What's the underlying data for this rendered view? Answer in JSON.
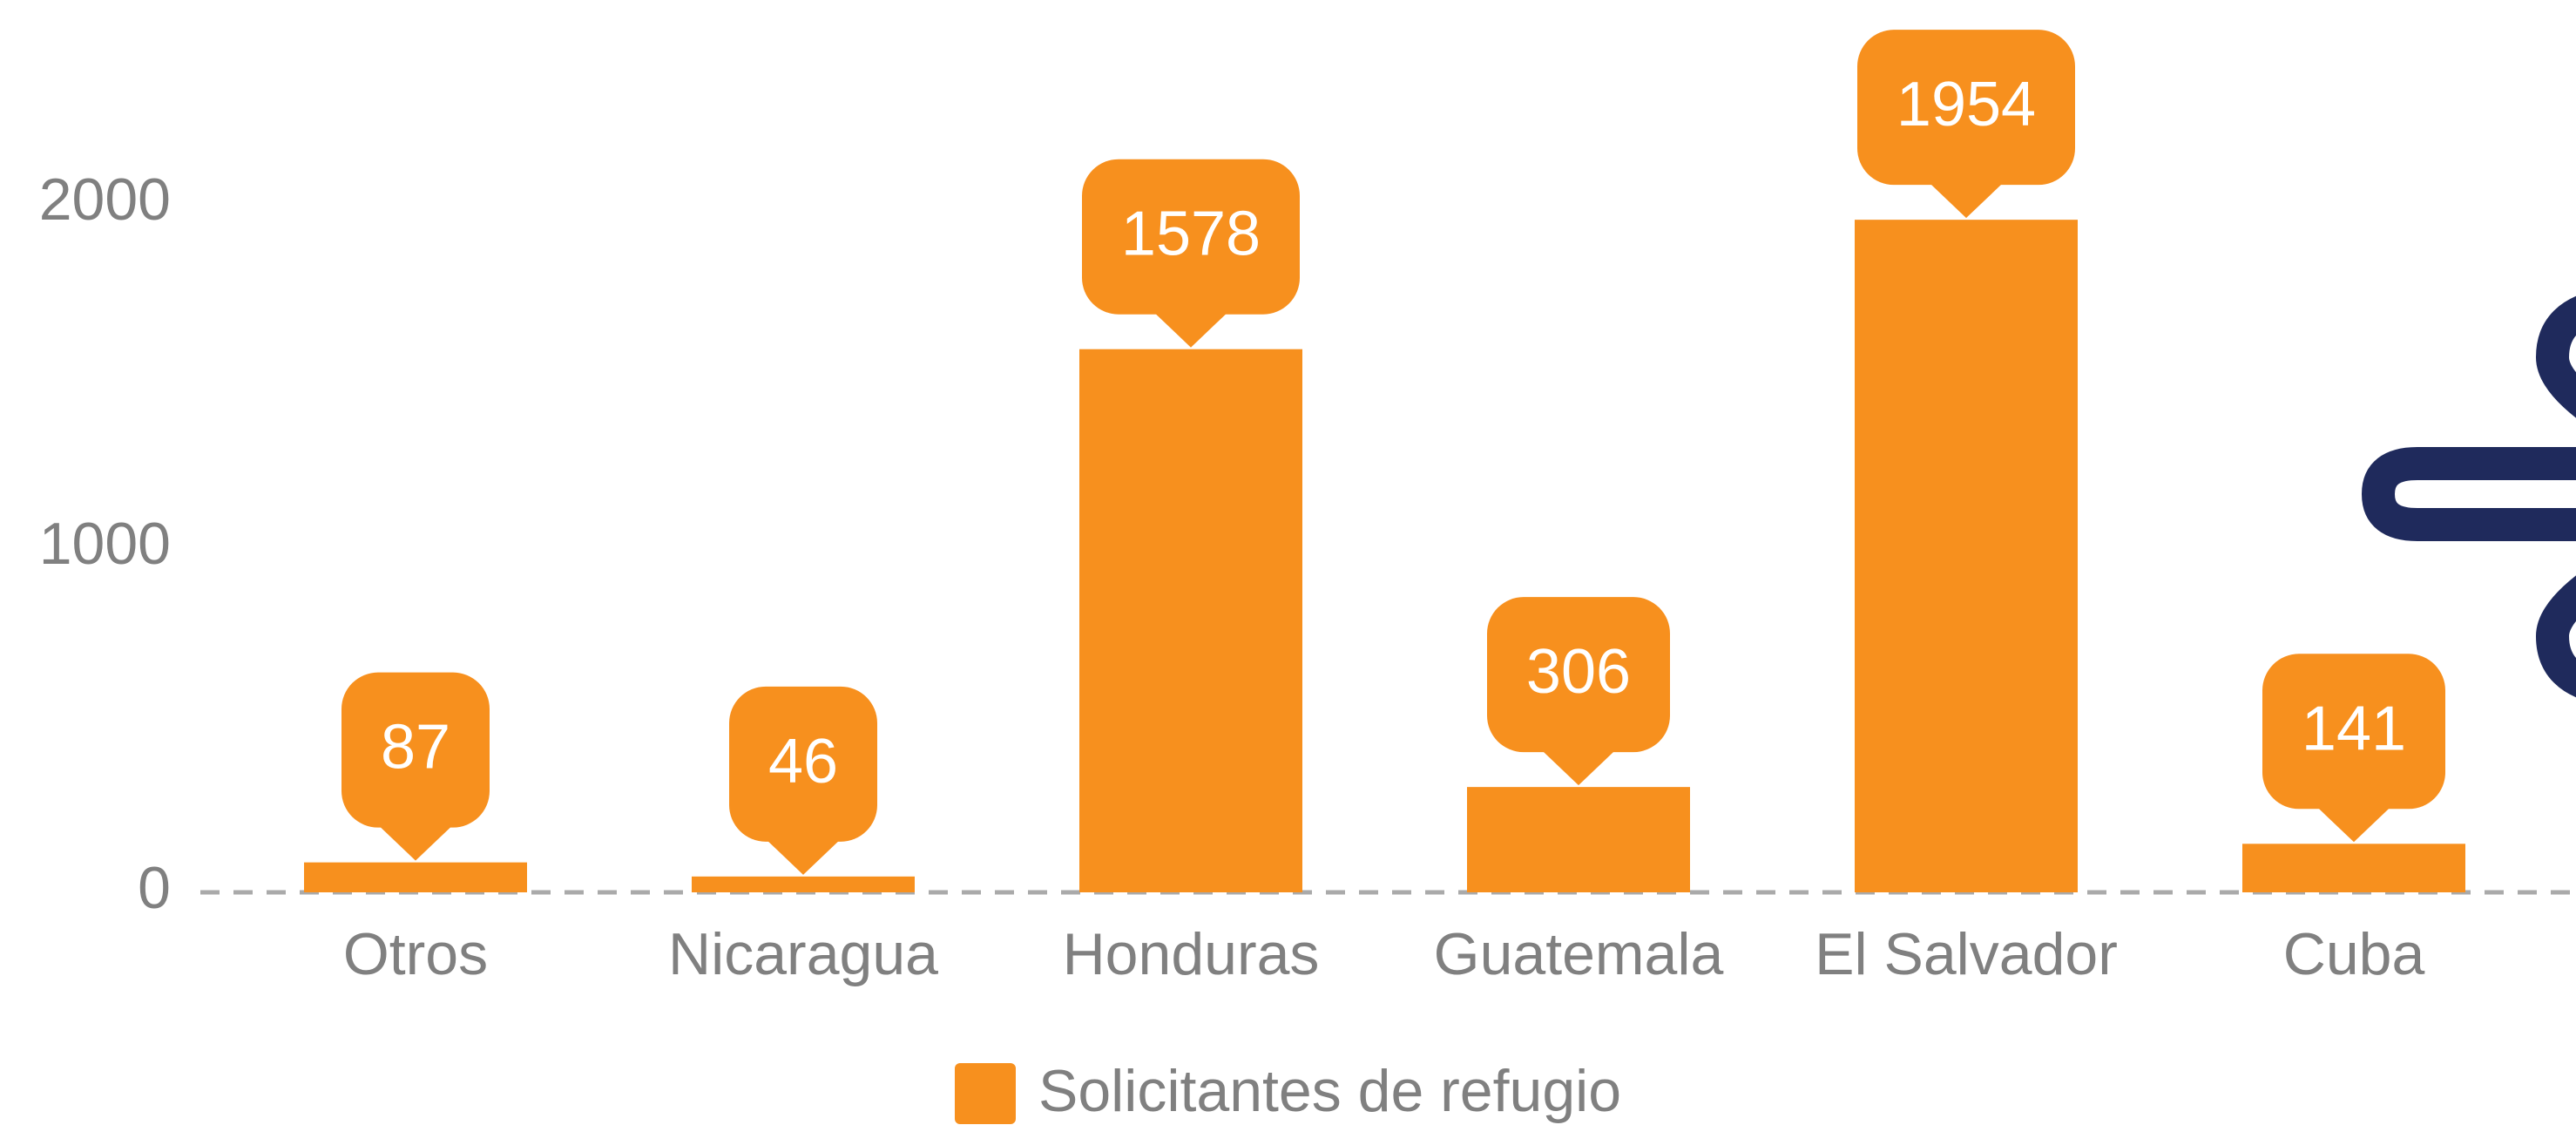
{
  "chart_data": {
    "type": "bar",
    "categories": [
      "Otros",
      "Nicaragua",
      "Honduras",
      "Guatemala",
      "El Salvador",
      "Cuba"
    ],
    "series": [
      {
        "name": "Solicitantes de refugio",
        "color": "#f7901e",
        "values": [
          87,
          46,
          1578,
          306,
          1954,
          141
        ]
      }
    ],
    "ylim": [
      0,
      2000
    ],
    "yticks": [
      0,
      1000,
      2000
    ],
    "grid": false,
    "legend": "bottom",
    "data_labels": true
  }
}
